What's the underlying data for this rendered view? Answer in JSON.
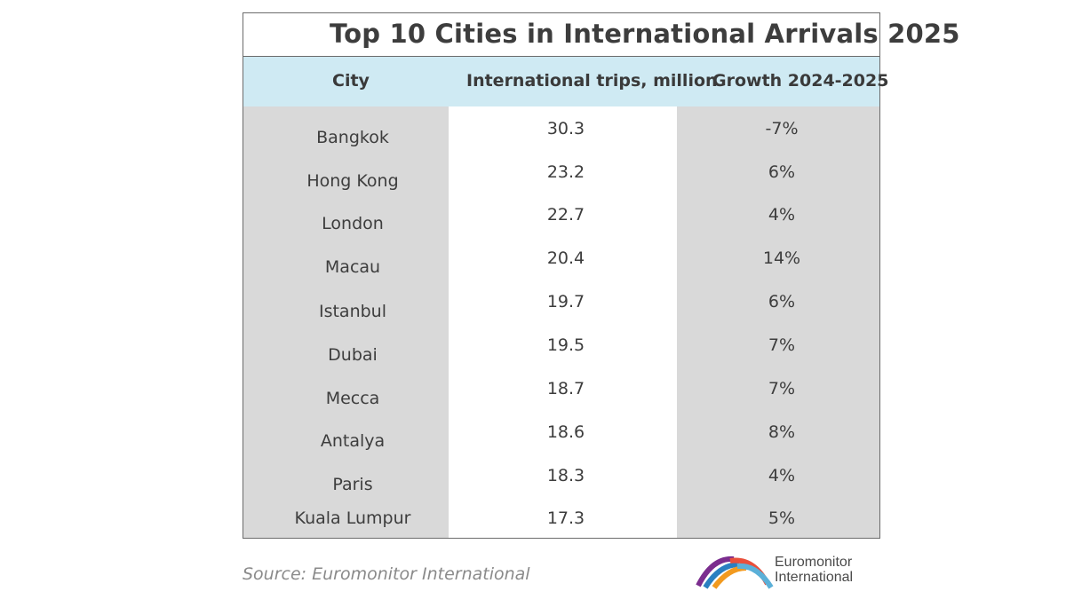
{
  "chart_data": {
    "type": "table",
    "title": "Top 10 Cities in International Arrivals 2025",
    "columns": [
      "City",
      "International trips, million",
      "Growth 2024-2025"
    ],
    "rows": [
      {
        "city": "Bangkok",
        "trips": "30.3",
        "growth": "-7%"
      },
      {
        "city": "Hong Kong",
        "trips": "23.2",
        "growth": "6%"
      },
      {
        "city": "London",
        "trips": "22.7",
        "growth": "4%"
      },
      {
        "city": "Macau",
        "trips": "20.4",
        "growth": "14%"
      },
      {
        "city": "Istanbul",
        "trips": "19.7",
        "growth": "6%"
      },
      {
        "city": "Dubai",
        "trips": "19.5",
        "growth": "7%"
      },
      {
        "city": "Mecca",
        "trips": "18.7",
        "growth": "7%"
      },
      {
        "city": "Antalya",
        "trips": "18.6",
        "growth": "8%"
      },
      {
        "city": "Paris",
        "trips": "18.3",
        "growth": "4%"
      },
      {
        "city": "Kuala Lumpur",
        "trips": "17.3",
        "growth": "5%"
      }
    ]
  },
  "source": "Source: Euromonitor International",
  "brand": {
    "line1": "Euromonitor",
    "line2": "International"
  },
  "colors": {
    "header_bg": "#cfeaf3",
    "grey_column": "#d9d9d9",
    "text": "#3d3d3d",
    "logo": [
      "#7b2d8e",
      "#2a7fc1",
      "#f29a1f",
      "#e94f3a",
      "#5bb0d8"
    ]
  }
}
